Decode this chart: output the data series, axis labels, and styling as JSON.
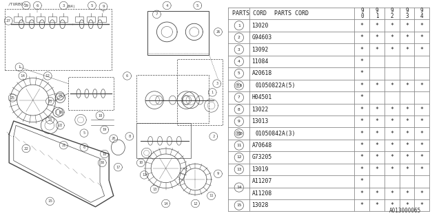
{
  "bg_color": "#ffffff",
  "diagram_label": "A013000065",
  "lc": "#444444",
  "row_data": [
    [
      1,
      "13020",
      [
        1,
        1,
        1,
        1,
        1
      ],
      false
    ],
    [
      2,
      "G94603",
      [
        1,
        1,
        1,
        1,
        1
      ],
      false
    ],
    [
      3,
      "13092",
      [
        1,
        1,
        1,
        1,
        1
      ],
      false
    ],
    [
      4,
      "11084",
      [
        1,
        0,
        0,
        0,
        0
      ],
      false
    ],
    [
      5,
      "A20618",
      [
        1,
        0,
        0,
        0,
        0
      ],
      false
    ],
    [
      6,
      "(B)01050822A(5)",
      [
        1,
        1,
        1,
        1,
        1
      ],
      true
    ],
    [
      7,
      "H04501",
      [
        1,
        0,
        0,
        0,
        0
      ],
      false
    ],
    [
      8,
      "13022",
      [
        1,
        1,
        1,
        1,
        1
      ],
      false
    ],
    [
      9,
      "13013",
      [
        1,
        1,
        1,
        1,
        1
      ],
      false
    ],
    [
      10,
      "(B)01050842A(3)",
      [
        1,
        1,
        1,
        1,
        1
      ],
      true
    ],
    [
      11,
      "A70648",
      [
        1,
        1,
        1,
        1,
        1
      ],
      false
    ],
    [
      12,
      "G73205",
      [
        1,
        1,
        1,
        1,
        1
      ],
      false
    ],
    [
      13,
      "13019",
      [
        1,
        1,
        1,
        1,
        1
      ],
      false
    ],
    [
      14,
      "A11207",
      [
        1,
        0,
        0,
        0,
        0
      ],
      false
    ],
    [
      14,
      "A11208",
      [
        1,
        1,
        1,
        1,
        1
      ],
      false
    ],
    [
      15,
      "13028",
      [
        1,
        1,
        1,
        1,
        1
      ],
      false
    ]
  ],
  "yr_labels": [
    "9\n0",
    "9\n1",
    "9\n2",
    "9\n3",
    "9\n4"
  ]
}
